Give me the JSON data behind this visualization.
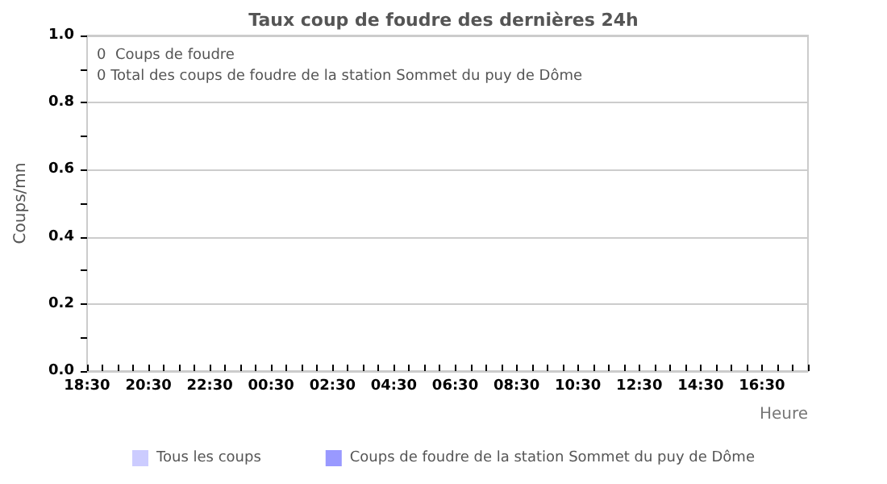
{
  "chart_data": {
    "type": "bar",
    "title": "Taux coup de foudre des dernières 24h",
    "xlabel": "Heure",
    "ylabel": "Coups/mn",
    "annotations": [
      "0  Coups de foudre",
      "0 Total des coups de foudre de la station Sommet du puy de Dôme"
    ],
    "categories": [
      "18:30",
      null,
      null,
      null,
      "20:30",
      null,
      null,
      null,
      "22:30",
      null,
      null,
      null,
      "00:30",
      null,
      null,
      null,
      "02:30",
      null,
      null,
      null,
      "04:30",
      null,
      null,
      null,
      "06:30",
      null,
      null,
      null,
      "08:30",
      null,
      null,
      null,
      "10:30",
      null,
      null,
      null,
      "12:30",
      null,
      null,
      null,
      "14:30",
      null,
      null,
      null,
      "16:30",
      null,
      null,
      null
    ],
    "series": [
      {
        "name": "Tous les coups",
        "color": "#ccccff",
        "values": [
          0,
          0,
          0,
          0,
          0,
          0,
          0,
          0,
          0,
          0,
          0,
          0,
          0,
          0,
          0,
          0,
          0,
          0,
          0,
          0,
          0,
          0,
          0,
          0,
          0,
          0,
          0,
          0,
          0,
          0,
          0,
          0,
          0,
          0,
          0,
          0,
          0,
          0,
          0,
          0,
          0,
          0,
          0,
          0,
          0,
          0,
          0,
          0
        ]
      },
      {
        "name": "Coups de foudre de la station Sommet du puy de Dôme",
        "color": "#9999ff",
        "values": [
          0,
          0,
          0,
          0,
          0,
          0,
          0,
          0,
          0,
          0,
          0,
          0,
          0,
          0,
          0,
          0,
          0,
          0,
          0,
          0,
          0,
          0,
          0,
          0,
          0,
          0,
          0,
          0,
          0,
          0,
          0,
          0,
          0,
          0,
          0,
          0,
          0,
          0,
          0,
          0,
          0,
          0,
          0,
          0,
          0,
          0,
          0,
          0
        ]
      }
    ],
    "ylim": [
      0,
      1
    ],
    "yticks": [
      {
        "value": 0,
        "label": "0.0"
      },
      {
        "value": 0.1,
        "label": null
      },
      {
        "value": 0.2,
        "label": "0.2"
      },
      {
        "value": 0.3,
        "label": null
      },
      {
        "value": 0.4,
        "label": "0.4"
      },
      {
        "value": 0.5,
        "label": null
      },
      {
        "value": 0.6,
        "label": "0.6"
      },
      {
        "value": 0.7,
        "label": null
      },
      {
        "value": 0.8,
        "label": "0.8"
      },
      {
        "value": 0.9,
        "label": null
      },
      {
        "value": 1,
        "label": "1.0"
      }
    ],
    "grid": "y",
    "legend": "bottom"
  }
}
